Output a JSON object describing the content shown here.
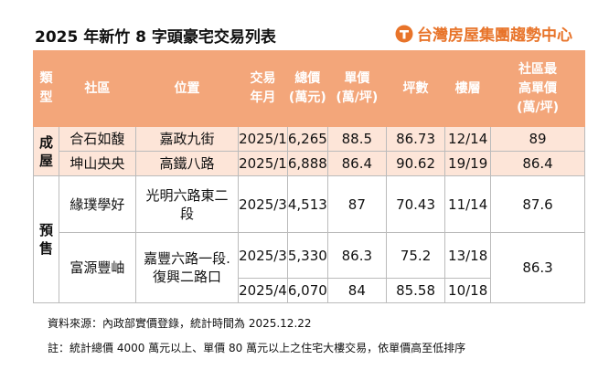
{
  "header": {
    "title": "2025 年新竹 8 字頭豪宅交易列表",
    "logo": "台灣房屋集團趨勢中心"
  },
  "table": {
    "columns": [
      [
        "類型"
      ],
      [
        "社區"
      ],
      [
        "位置"
      ],
      [
        "交易",
        "年月"
      ],
      [
        "總價",
        "(萬元)"
      ],
      [
        "單價",
        "(萬/坪)"
      ],
      [
        "坪數"
      ],
      [
        "樓層"
      ],
      [
        "社區最",
        "高單價",
        "(萬/坪)"
      ]
    ],
    "groups": [
      {
        "type": "成屋",
        "communities": [
          {
            "name": "合石如馥",
            "location": [
              "嘉政九街"
            ],
            "max_price": "89",
            "transactions": [
              {
                "date": "2025/1",
                "total": "6,265",
                "unit": "88.5",
                "area": "86.73",
                "floor": "12/14"
              }
            ]
          },
          {
            "name": "坤山央央",
            "location": [
              "高鐵八路"
            ],
            "max_price": "86.4",
            "transactions": [
              {
                "date": "2025/1",
                "total": "6,888",
                "unit": "86.4",
                "area": "90.62",
                "floor": "19/19"
              }
            ]
          }
        ]
      },
      {
        "type": "預售",
        "communities": [
          {
            "name": "緣璞學好",
            "location": [
              "光明六路東二",
              "段"
            ],
            "max_price": "87.6",
            "transactions": [
              {
                "date": "2025/3",
                "total": "4,513",
                "unit": "87",
                "area": "70.43",
                "floor": "11/14"
              }
            ]
          },
          {
            "name": "富源豐岫",
            "location": [
              "嘉豐六路一段.",
              "復興二路口"
            ],
            "max_price": "86.3",
            "transactions": [
              {
                "date": "2025/3",
                "total": "5,330",
                "unit": "86.3",
                "area": "75.2",
                "floor": "13/18"
              },
              {
                "date": "2025/4",
                "total": "6,070",
                "unit": "84",
                "area": "85.58",
                "floor": "10/18"
              }
            ]
          }
        ]
      }
    ]
  },
  "footer": {
    "source": "資料來源：內政部實價登錄，統計時間為 2025.12.22",
    "note": "註：統計總價 4000 萬元以上、單價 80 萬元以上之住宅大樓交易，依單價高至低排序"
  }
}
